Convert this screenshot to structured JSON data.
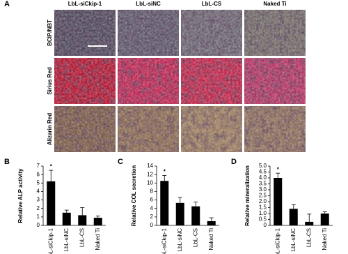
{
  "panel_a": {
    "label": "A",
    "columns": [
      "LbL-siCkip-1",
      "LbL-siNC",
      "LbL-CS",
      "Naked Ti"
    ],
    "rows": [
      "BCIP/NBT",
      "Sirius Red",
      "Alizarin Red"
    ]
  },
  "chart_data": [
    {
      "type": "bar",
      "panel_label": "B",
      "ylabel": "Relative ALP activity",
      "categories": [
        "LbL-siCkip-1",
        "LbL-siNC",
        "LbL-CS",
        "Naked Ti"
      ],
      "values": [
        5.2,
        1.5,
        1.2,
        0.9
      ],
      "errors": [
        1.3,
        0.3,
        0.9,
        0.2
      ],
      "significance_labels": [
        "*",
        null,
        null,
        null
      ],
      "color": "#000000",
      "ylim": [
        0,
        7
      ],
      "yticks": [
        0,
        1,
        2,
        3,
        4,
        5,
        6,
        7
      ]
    },
    {
      "type": "bar",
      "panel_label": "C",
      "ylabel": "Relative COL secretion",
      "categories": [
        "LbL-siCkip-1",
        "LbL-siNC",
        "LbL-CS",
        "Naked Ti"
      ],
      "values": [
        10.5,
        5.3,
        4.5,
        1.0
      ],
      "errors": [
        1.3,
        1.3,
        1.0,
        0.8
      ],
      "significance_labels": [
        "*",
        null,
        null,
        null
      ],
      "color": "#000000",
      "ylim": [
        0,
        14
      ],
      "yticks": [
        0,
        2,
        4,
        6,
        8,
        10,
        12,
        14
      ]
    },
    {
      "type": "bar",
      "panel_label": "D",
      "ylabel": "Relative mineralization",
      "categories": [
        "LbL-siCkip-1",
        "LbL-siNC",
        "LbL-CS",
        "Naked Ti"
      ],
      "values": [
        4.0,
        1.4,
        0.3,
        1.0
      ],
      "errors": [
        0.4,
        0.35,
        0.65,
        0.15
      ],
      "significance_labels": [
        "*",
        null,
        null,
        null
      ],
      "color": "#000000",
      "ylim": [
        0,
        5
      ],
      "yticks": [
        0,
        0.5,
        {
          "value": 1,
          "label": "1.0"
        },
        1.5,
        {
          "value": 2,
          "label": "2.0"
        },
        2.5,
        {
          "value": 3,
          "label": "3.0"
        },
        3.5,
        {
          "value": 4,
          "label": "4.0"
        },
        4.5,
        {
          "value": 5,
          "label": "5.0"
        }
      ]
    }
  ]
}
